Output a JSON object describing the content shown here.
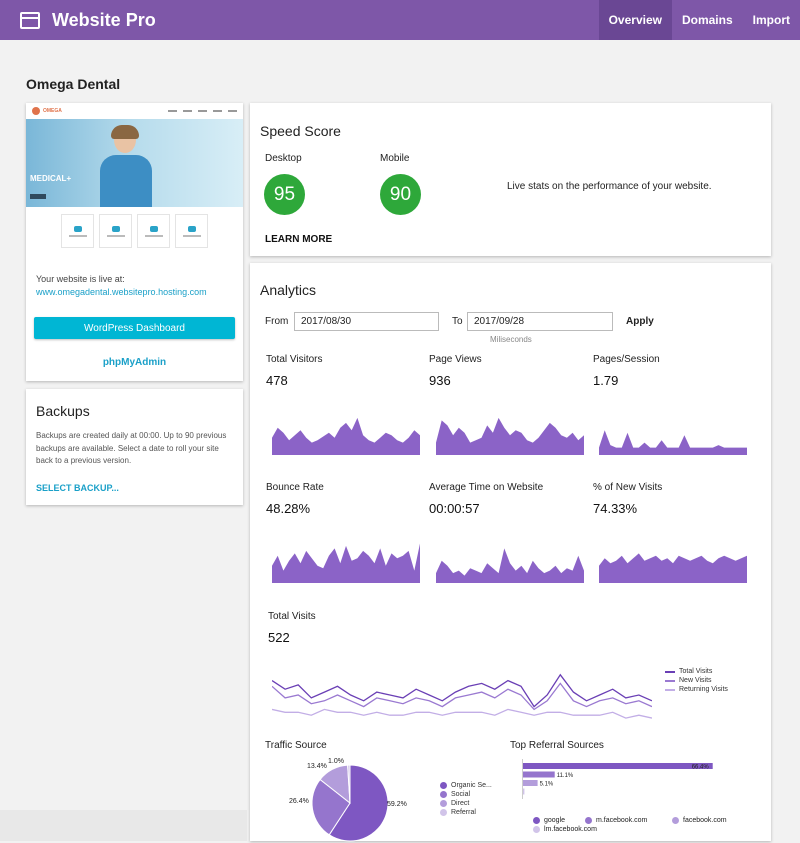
{
  "app": {
    "title": "Website Pro"
  },
  "nav": [
    {
      "label": "Overview",
      "active": true
    },
    {
      "label": "Domains"
    },
    {
      "label": "Import"
    }
  ],
  "site": {
    "name": "Omega Dental",
    "preview_logo": "OMEGA",
    "preview_hero_text": "MEDICAL+",
    "live_label": "Your website is live at:",
    "live_url": "www.omegadental.websitepro.hosting.com",
    "wp_button": "WordPress Dashboard",
    "phpmyadmin": "phpMyAdmin"
  },
  "backups": {
    "title": "Backups",
    "text": "Backups are created daily at 00:00.  Up to 90 previous backups are available.  Select a date to roll your site back to a previous version.",
    "link": "SELECT BACKUP..."
  },
  "speed": {
    "title": "Speed Score",
    "desktop_label": "Desktop",
    "desktop_score": "95",
    "mobile_label": "Mobile",
    "mobile_score": "90",
    "description": "Live stats on the performance of your website.",
    "learn_more": "LEARN MORE",
    "score_color": "#2ea83a"
  },
  "analytics": {
    "title": "Analytics",
    "from_label": "From",
    "from_value": "2017/08/30",
    "to_label": "To",
    "to_value": "2017/09/28",
    "apply": "Apply",
    "sublabel": "Miliseconds",
    "accent": "#8b63c7",
    "metrics": [
      {
        "label": "Total Visitors",
        "value": "478"
      },
      {
        "label": "Page Views",
        "value": "936"
      },
      {
        "label": "Pages/Session",
        "value": "1.79"
      },
      {
        "label": "Bounce Rate",
        "value": "48.28%"
      },
      {
        "label": "Average Time on Website",
        "value": "00:00:57"
      },
      {
        "label": "% of New Visits",
        "value": "74.33%"
      }
    ],
    "total_visits": {
      "label": "Total Visits",
      "value": "522",
      "legend": [
        {
          "name": "Total Visits",
          "color": "#6a3fb5"
        },
        {
          "name": "New Visits",
          "color": "#9a79d1"
        },
        {
          "name": "Returning Visits",
          "color": "#c2aee6"
        }
      ]
    },
    "traffic_source": {
      "title": "Traffic Source",
      "legend": [
        "Organic Se...",
        "Social",
        "Direct",
        "Referral"
      ],
      "colors": [
        "#7e57c2",
        "#9575cd",
        "#b39ddb",
        "#d1c4e9"
      ]
    },
    "top_referral": {
      "title": "Top Referral Sources",
      "legend": [
        "google",
        "m.facebook.com",
        "facebook.com",
        "lm.facebook.com"
      ],
      "colors": [
        "#7e57c2",
        "#9575cd",
        "#b39ddb",
        "#d1c4e9"
      ]
    }
  },
  "chart_data": [
    {
      "type": "area",
      "title": "Total Visitors",
      "values": [
        14,
        22,
        18,
        12,
        16,
        20,
        14,
        10,
        12,
        15,
        18,
        14,
        22,
        26,
        20,
        30,
        16,
        12,
        10,
        14,
        18,
        16,
        12,
        10,
        14,
        20,
        16
      ]
    },
    {
      "type": "area",
      "title": "Page Views",
      "values": [
        10,
        28,
        24,
        16,
        22,
        18,
        10,
        12,
        14,
        24,
        18,
        30,
        22,
        16,
        20,
        18,
        12,
        10,
        14,
        20,
        26,
        22,
        16,
        14,
        18,
        12,
        16
      ]
    },
    {
      "type": "area",
      "title": "Pages/Session",
      "values": [
        6,
        20,
        8,
        6,
        6,
        18,
        6,
        6,
        10,
        6,
        6,
        12,
        6,
        6,
        6,
        16,
        6,
        6,
        6,
        6,
        6,
        8,
        6,
        6,
        6,
        6,
        6
      ]
    },
    {
      "type": "area",
      "title": "Bounce Rate",
      "values": [
        14,
        22,
        10,
        18,
        24,
        16,
        26,
        20,
        14,
        12,
        22,
        28,
        16,
        30,
        18,
        20,
        26,
        22,
        16,
        28,
        14,
        24,
        20,
        22,
        26,
        10,
        32
      ]
    },
    {
      "type": "area",
      "title": "Average Time on Website",
      "values": [
        8,
        18,
        14,
        8,
        10,
        6,
        12,
        10,
        8,
        16,
        12,
        8,
        28,
        16,
        10,
        14,
        8,
        18,
        12,
        8,
        10,
        14,
        8,
        12,
        10,
        22,
        10
      ]
    },
    {
      "type": "area",
      "title": "% of New Visits",
      "values": [
        14,
        20,
        16,
        18,
        22,
        16,
        20,
        24,
        18,
        20,
        22,
        18,
        20,
        16,
        22,
        20,
        18,
        20,
        22,
        18,
        16,
        20,
        22,
        20,
        18,
        20,
        22
      ]
    },
    {
      "type": "line",
      "title": "Total Visits",
      "series": [
        {
          "name": "Total Visits",
          "values": [
            28,
            22,
            25,
            16,
            20,
            24,
            18,
            14,
            20,
            18,
            16,
            22,
            18,
            14,
            20,
            24,
            26,
            22,
            28,
            24,
            10,
            18,
            32,
            20,
            14,
            18,
            22,
            16,
            18,
            14
          ]
        },
        {
          "name": "New Visits",
          "values": [
            24,
            16,
            18,
            12,
            14,
            18,
            14,
            10,
            16,
            14,
            12,
            16,
            14,
            10,
            16,
            18,
            20,
            16,
            22,
            18,
            8,
            14,
            26,
            14,
            10,
            14,
            16,
            12,
            14,
            10
          ]
        },
        {
          "name": "Returning Visits",
          "values": [
            8,
            6,
            6,
            4,
            8,
            6,
            6,
            4,
            6,
            4,
            4,
            6,
            6,
            4,
            6,
            6,
            6,
            4,
            8,
            6,
            4,
            6,
            6,
            4,
            4,
            4,
            6,
            2,
            4,
            2
          ]
        }
      ]
    },
    {
      "type": "pie",
      "title": "Traffic Source",
      "categories": [
        "Organic Se...",
        "Social",
        "Direct",
        "Referral"
      ],
      "values": [
        59.2,
        26.4,
        13.4,
        1.0
      ]
    },
    {
      "type": "bar",
      "title": "Top Referral Sources",
      "categories": [
        "google",
        "m.facebook.com",
        "facebook.com",
        "lm.facebook.com"
      ],
      "values": [
        66.4,
        11.1,
        5.1,
        0.5
      ],
      "xlim": [
        0,
        70
      ]
    }
  ]
}
